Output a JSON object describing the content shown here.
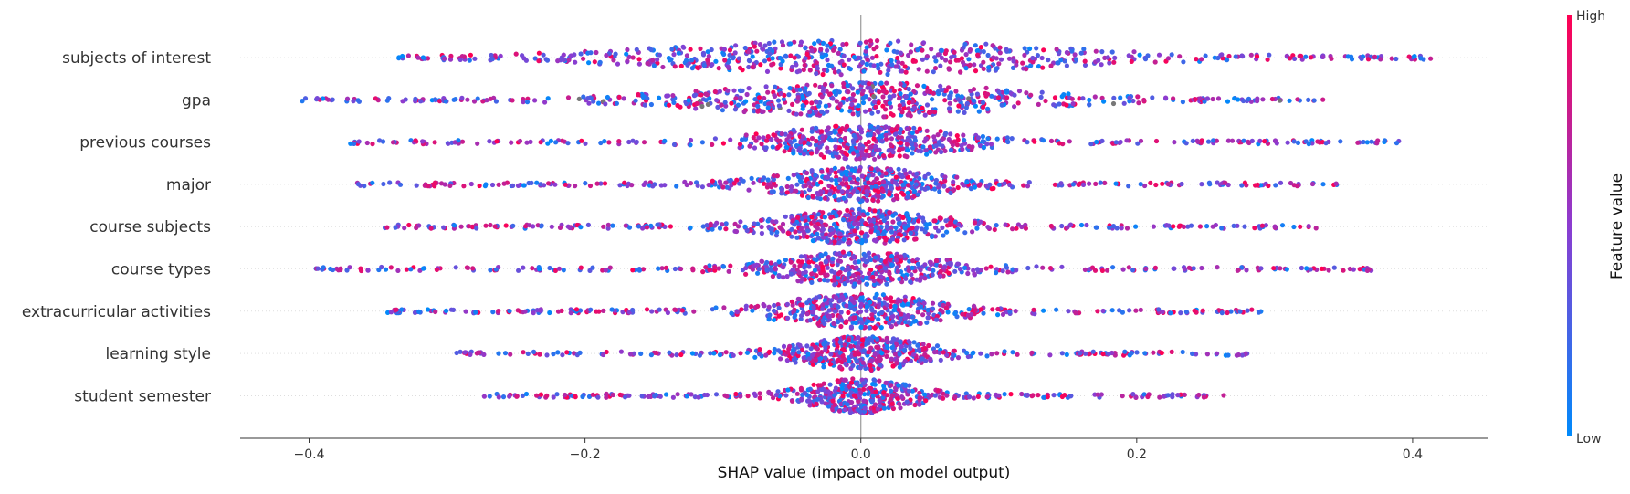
{
  "chart_data": {
    "type": "scatter",
    "subtype": "shap-beeswarm",
    "xlabel": "SHAP value (impact on model output)",
    "xlim": [
      -0.45,
      0.455
    ],
    "xticks": [
      -0.4,
      -0.2,
      0.0,
      0.2,
      0.4
    ],
    "xtick_labels": [
      "−0.4",
      "−0.2",
      "0.0",
      "0.2",
      "0.4"
    ],
    "features": [
      {
        "name": "subjects of interest",
        "min": -0.335,
        "max": 0.413,
        "core": 0.22,
        "n": 620,
        "gray_frac": 0.0
      },
      {
        "name": "gpa",
        "min": -0.405,
        "max": 0.335,
        "core": 0.17,
        "n": 650,
        "gray_frac": 0.03
      },
      {
        "name": "previous courses",
        "min": -0.37,
        "max": 0.39,
        "core": 0.1,
        "n": 600,
        "gray_frac": 0.0
      },
      {
        "name": "major",
        "min": -0.365,
        "max": 0.345,
        "core": 0.09,
        "n": 600,
        "gray_frac": 0.0
      },
      {
        "name": "course subjects",
        "min": -0.345,
        "max": 0.33,
        "core": 0.09,
        "n": 600,
        "gray_frac": 0.0
      },
      {
        "name": "course types",
        "min": -0.395,
        "max": 0.37,
        "core": 0.09,
        "n": 580,
        "gray_frac": 0.0
      },
      {
        "name": "extracurricular activities",
        "min": -0.343,
        "max": 0.29,
        "core": 0.09,
        "n": 580,
        "gray_frac": 0.0
      },
      {
        "name": "learning style",
        "min": -0.293,
        "max": 0.28,
        "core": 0.07,
        "n": 540,
        "gray_frac": 0.0
      },
      {
        "name": "student semester",
        "min": -0.273,
        "max": 0.263,
        "core": 0.06,
        "n": 520,
        "gray_frac": 0.0
      }
    ],
    "colorbar": {
      "label": "Feature value",
      "high_label": "High",
      "low_label": "Low",
      "low_color": "#008afb",
      "mid_color": "#8c3cd0",
      "high_color": "#ff0052"
    },
    "zero_line": true,
    "grid": false
  }
}
